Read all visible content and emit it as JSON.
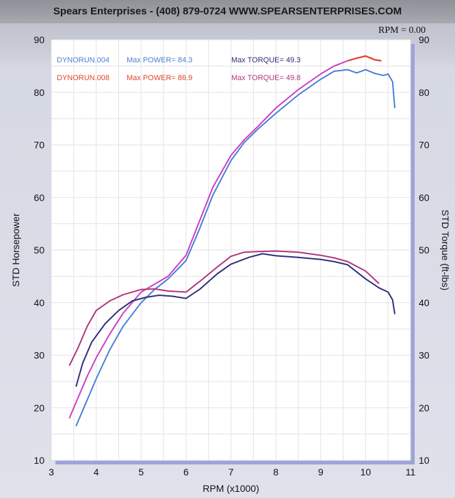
{
  "header": {
    "title": "Spears Enterprises - (408) 879-0724   WWW.SPEARSENTERPRISES.COM",
    "rpm_readout": "RPM = 0.00"
  },
  "colors": {
    "run004": "#4a7fd6",
    "run008": "#cc3fc4",
    "torque004": "#2b2f7a",
    "torque008": "#b0357c",
    "peak008": "#e0442c",
    "plot_bg": "#ffffff",
    "grid": "#e3e3e3"
  },
  "legend": [
    {
      "run": "DYNORUN.004",
      "power": "Max POWER= 84.3",
      "torque": "Max TORQUE= 49.3"
    },
    {
      "run": "DYNORUN.008",
      "power": "Max POWER= 86.9",
      "torque": "Max TORQUE= 49.8"
    }
  ],
  "chart_data": {
    "type": "line",
    "title": "Spears Enterprises - (408) 879-0724   WWW.SPEARSENTERPRISES.COM",
    "xlabel": "RPM (x1000)",
    "ylabel": "STD Horsepower",
    "y2label": "STD Torque (ft-lbs)",
    "xlim": [
      3,
      11
    ],
    "ylim": [
      10,
      90
    ],
    "y2lim": [
      10,
      90
    ],
    "xticks": [
      "3",
      "4",
      "5",
      "6",
      "7",
      "8",
      "9",
      "10",
      "11"
    ],
    "yticks": [
      "10",
      "20",
      "30",
      "40",
      "50",
      "60",
      "70",
      "80",
      "90"
    ],
    "grid": true,
    "legend_placement": "top-left",
    "series": [
      {
        "name": "DYNORUN.004",
        "kind": "power",
        "x": [
          3.55,
          3.8,
          4.0,
          4.3,
          4.6,
          5.0,
          5.3,
          5.6,
          6.0,
          6.3,
          6.6,
          7.0,
          7.3,
          7.6,
          8.0,
          8.5,
          9.0,
          9.3,
          9.6,
          9.8,
          10.0,
          10.2,
          10.4,
          10.5,
          10.6,
          10.65
        ],
        "y": [
          16.5,
          21.5,
          25.5,
          31,
          35.5,
          40,
          42.5,
          44.5,
          48,
          54,
          60.5,
          67,
          70.5,
          73,
          76,
          79.5,
          82.5,
          84,
          84.3,
          83.7,
          84.3,
          83.6,
          83.2,
          83.5,
          82,
          77
        ]
      },
      {
        "name": "DYNORUN.008",
        "kind": "power",
        "x": [
          3.4,
          3.6,
          3.8,
          4.0,
          4.3,
          4.6,
          5.0,
          5.3,
          5.6,
          6.0,
          6.3,
          6.6,
          7.0,
          7.3,
          7.6,
          8.0,
          8.5,
          9.0,
          9.3,
          9.6,
          9.8,
          10.0,
          10.2,
          10.35
        ],
        "y": [
          18,
          22,
          26,
          29.5,
          34,
          38,
          42,
          43.5,
          45,
          49,
          55.5,
          62,
          68,
          71,
          73.5,
          77,
          80.5,
          83.5,
          85,
          86,
          86.5,
          86.9,
          86.2,
          86
        ]
      },
      {
        "name": "DYNORUN.004",
        "kind": "torque",
        "x": [
          3.55,
          3.7,
          3.9,
          4.2,
          4.5,
          4.8,
          5.1,
          5.4,
          5.7,
          6.0,
          6.3,
          6.7,
          7.0,
          7.4,
          7.7,
          8.0,
          8.5,
          9.0,
          9.3,
          9.6,
          10.0,
          10.3,
          10.5,
          10.6,
          10.65
        ],
        "y": [
          24,
          28.5,
          32.5,
          36,
          38.5,
          40.3,
          41,
          41.4,
          41.2,
          40.8,
          42.5,
          45.5,
          47.3,
          48.6,
          49.3,
          48.9,
          48.6,
          48.2,
          47.8,
          47.2,
          44.5,
          42.8,
          42,
          40.5,
          37.8
        ]
      },
      {
        "name": "DYNORUN.008",
        "kind": "torque",
        "x": [
          3.4,
          3.6,
          3.8,
          4.0,
          4.3,
          4.6,
          5.0,
          5.3,
          5.6,
          6.0,
          6.3,
          6.7,
          7.0,
          7.3,
          7.6,
          8.0,
          8.5,
          9.0,
          9.3,
          9.6,
          10.0,
          10.3
        ],
        "y": [
          28,
          31.5,
          35.5,
          38.5,
          40.3,
          41.5,
          42.5,
          42.6,
          42.2,
          42.0,
          44.0,
          46.8,
          48.8,
          49.6,
          49.7,
          49.8,
          49.6,
          49.0,
          48.5,
          47.8,
          46.0,
          43.6
        ]
      }
    ]
  }
}
